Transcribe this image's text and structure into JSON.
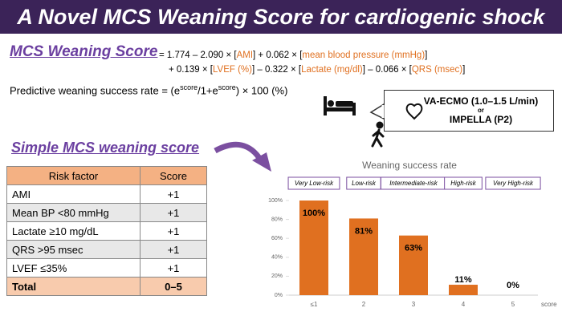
{
  "title": "A Novel MCS Weaning Score for cardiogenic shock",
  "formula": {
    "label": "MCS Weaning Score",
    "line1": [
      "= 1.774 – 2.090 × [",
      "AMI",
      "] + 0.062 × [",
      "mean blood pressure (mmHg)",
      "]"
    ],
    "line2": [
      "+ 0.139 × [",
      "LVEF (%)",
      "] – 0.322 × [",
      "Lactate (mg/dl)",
      "] – 0.066 × [",
      "QRS (msec)",
      "]"
    ],
    "prediction": [
      {
        "text": "Predictive weaning success rate = (e"
      },
      {
        "text": "score",
        "sup": true
      },
      {
        "text": "/1+e"
      },
      {
        "text": "score",
        "sup": true
      },
      {
        "text": ") × 100 (%)"
      }
    ]
  },
  "support": {
    "line1": "VA-ECMO (1.0–1.5 L/min)",
    "line2": "or",
    "line3": "IMPELLA (P2)"
  },
  "simple_score": {
    "title": "Simple MCS weaning score",
    "header": [
      "Risk factor",
      "Score"
    ],
    "rows": [
      [
        "AMI",
        "+1"
      ],
      [
        "Mean BP <80 mmHg",
        "+1"
      ],
      [
        "Lactate ≥10 mg/dL",
        "+1"
      ],
      [
        "QRS >95 msec",
        "+1"
      ],
      [
        "LVEF ≤35%",
        "+1"
      ]
    ],
    "total": [
      "Total",
      "0–5"
    ]
  },
  "chart_data": {
    "type": "bar",
    "title": "Weaning success rate",
    "categories": [
      "≤1",
      "2",
      "3",
      "4",
      "5"
    ],
    "risk_groups": [
      "Very Low-risk",
      "Low-risk",
      "Intermediate-risk",
      "High-risk",
      "Very High-risk"
    ],
    "values": [
      100,
      81,
      63,
      11,
      0
    ],
    "value_labels": [
      "100%",
      "81%",
      "63%",
      "11%",
      "0%"
    ],
    "color": "#e07020",
    "x_label": "score",
    "ylim": [
      0,
      100
    ],
    "yticks": [
      {
        "value": 0,
        "label": "0%"
      },
      {
        "value": 20,
        "label": "20%"
      },
      {
        "value": 40,
        "label": "40%"
      },
      {
        "value": 60,
        "label": "60%"
      },
      {
        "value": 80,
        "label": "80%"
      },
      {
        "value": 100,
        "label": "100%"
      }
    ]
  }
}
